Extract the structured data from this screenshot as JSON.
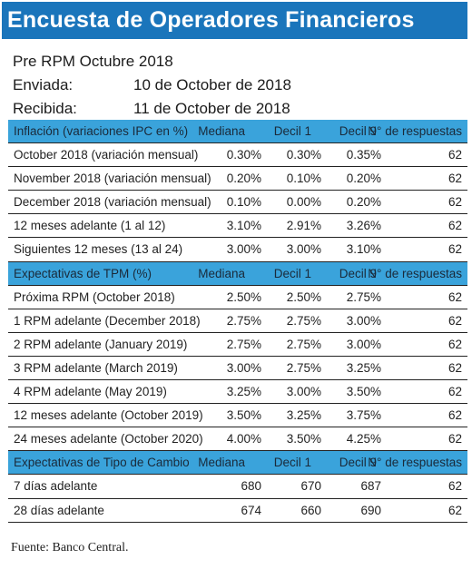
{
  "title": "Encuesta de Operadores Financieros (EOF)",
  "meta": {
    "survey": "Pre RPM Octubre 2018",
    "sent_label": "Enviada:",
    "sent_value": "10 de October de 2018",
    "received_label": "Recibida:",
    "received_value": "11 de October de 2018"
  },
  "sections": [
    {
      "header": [
        "Inflación (variaciones IPC en %)",
        "Mediana",
        "Decil 1",
        "Decil 9",
        "N° de respuestas"
      ],
      "rows": [
        [
          "October 2018 (variación mensual)",
          "0.30%",
          "0.30%",
          "0.35%",
          "62"
        ],
        [
          "November 2018 (variación mensual)",
          "0.20%",
          "0.10%",
          "0.20%",
          "62"
        ],
        [
          "December 2018 (variación mensual)",
          "0.10%",
          "0.00%",
          "0.20%",
          "62"
        ],
        [
          "12 meses adelante (1 al 12)",
          "3.10%",
          "2.91%",
          "3.26%",
          "62"
        ],
        [
          "Siguientes 12 meses (13 al 24)",
          "3.00%",
          "3.00%",
          "3.10%",
          "62"
        ]
      ]
    },
    {
      "header": [
        "Expectativas de TPM (%)",
        "Mediana",
        "Decil 1",
        "Decil 9",
        "N° de respuestas"
      ],
      "rows": [
        [
          "Próxima  RPM  (October 2018)",
          "2.50%",
          "2.50%",
          "2.75%",
          "62"
        ],
        [
          "1 RPM adelante  (December 2018)",
          "2.75%",
          "2.75%",
          "3.00%",
          "62"
        ],
        [
          "2 RPM adelante  (January 2019)",
          "2.75%",
          "2.75%",
          "3.00%",
          "62"
        ],
        [
          "3 RPM adelante  (March 2019)",
          "3.00%",
          "2.75%",
          "3.25%",
          "62"
        ],
        [
          "4 RPM adelante  (May 2019)",
          "3.25%",
          "3.00%",
          "3.50%",
          "62"
        ],
        [
          "12 meses adelante  (October 2019)",
          "3.50%",
          "3.25%",
          "3.75%",
          "62"
        ],
        [
          "24 meses adelante  (October 2020)",
          "4.00%",
          "3.50%",
          "4.25%",
          "62"
        ]
      ]
    },
    {
      "header": [
        "Expectativas de Tipo de Cambio",
        "Mediana",
        "Decil 1",
        "Decil 9",
        "N° de respuestas"
      ],
      "rows": [
        [
          "7 días adelante",
          "680",
          "670",
          "687",
          "62"
        ],
        [
          "28 días adelante",
          "674",
          "660",
          "690",
          "62"
        ]
      ]
    }
  ],
  "source": "Fuente: Banco Central."
}
